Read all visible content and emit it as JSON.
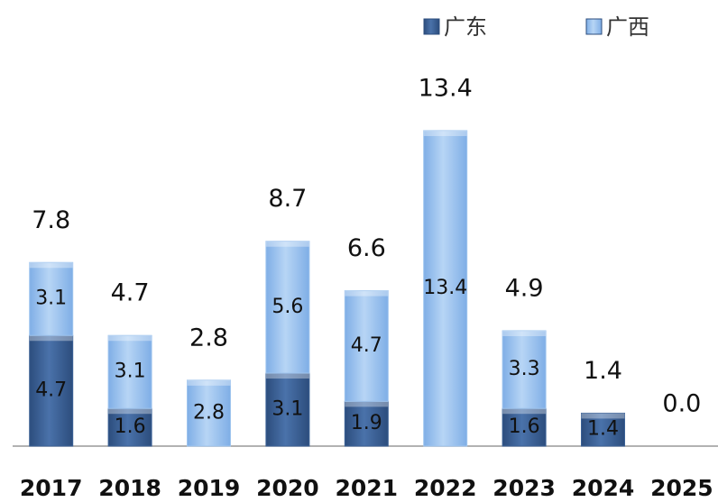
{
  "chart_data": {
    "type": "bar",
    "stacked": true,
    "categories": [
      "2017",
      "2018",
      "2019",
      "2020",
      "2021",
      "2022",
      "2023",
      "2024",
      "2025"
    ],
    "series": [
      {
        "name": "广东",
        "color": "#3b6196",
        "values": [
          4.7,
          1.6,
          0,
          3.1,
          1.9,
          0,
          1.6,
          1.4,
          0
        ]
      },
      {
        "name": "广西",
        "color": "#9ec4ee",
        "values": [
          3.1,
          3.1,
          2.8,
          5.6,
          4.7,
          13.4,
          3.3,
          0,
          0
        ]
      }
    ],
    "totals": [
      7.8,
      4.7,
      2.8,
      8.7,
      6.6,
      13.4,
      4.9,
      1.4,
      0.0
    ],
    "total_labels": [
      "7.8",
      "4.7",
      "2.8",
      "8.7",
      "6.6",
      "13.4",
      "4.9",
      "1.4",
      "0.0"
    ],
    "ylim": [
      0,
      14
    ]
  }
}
